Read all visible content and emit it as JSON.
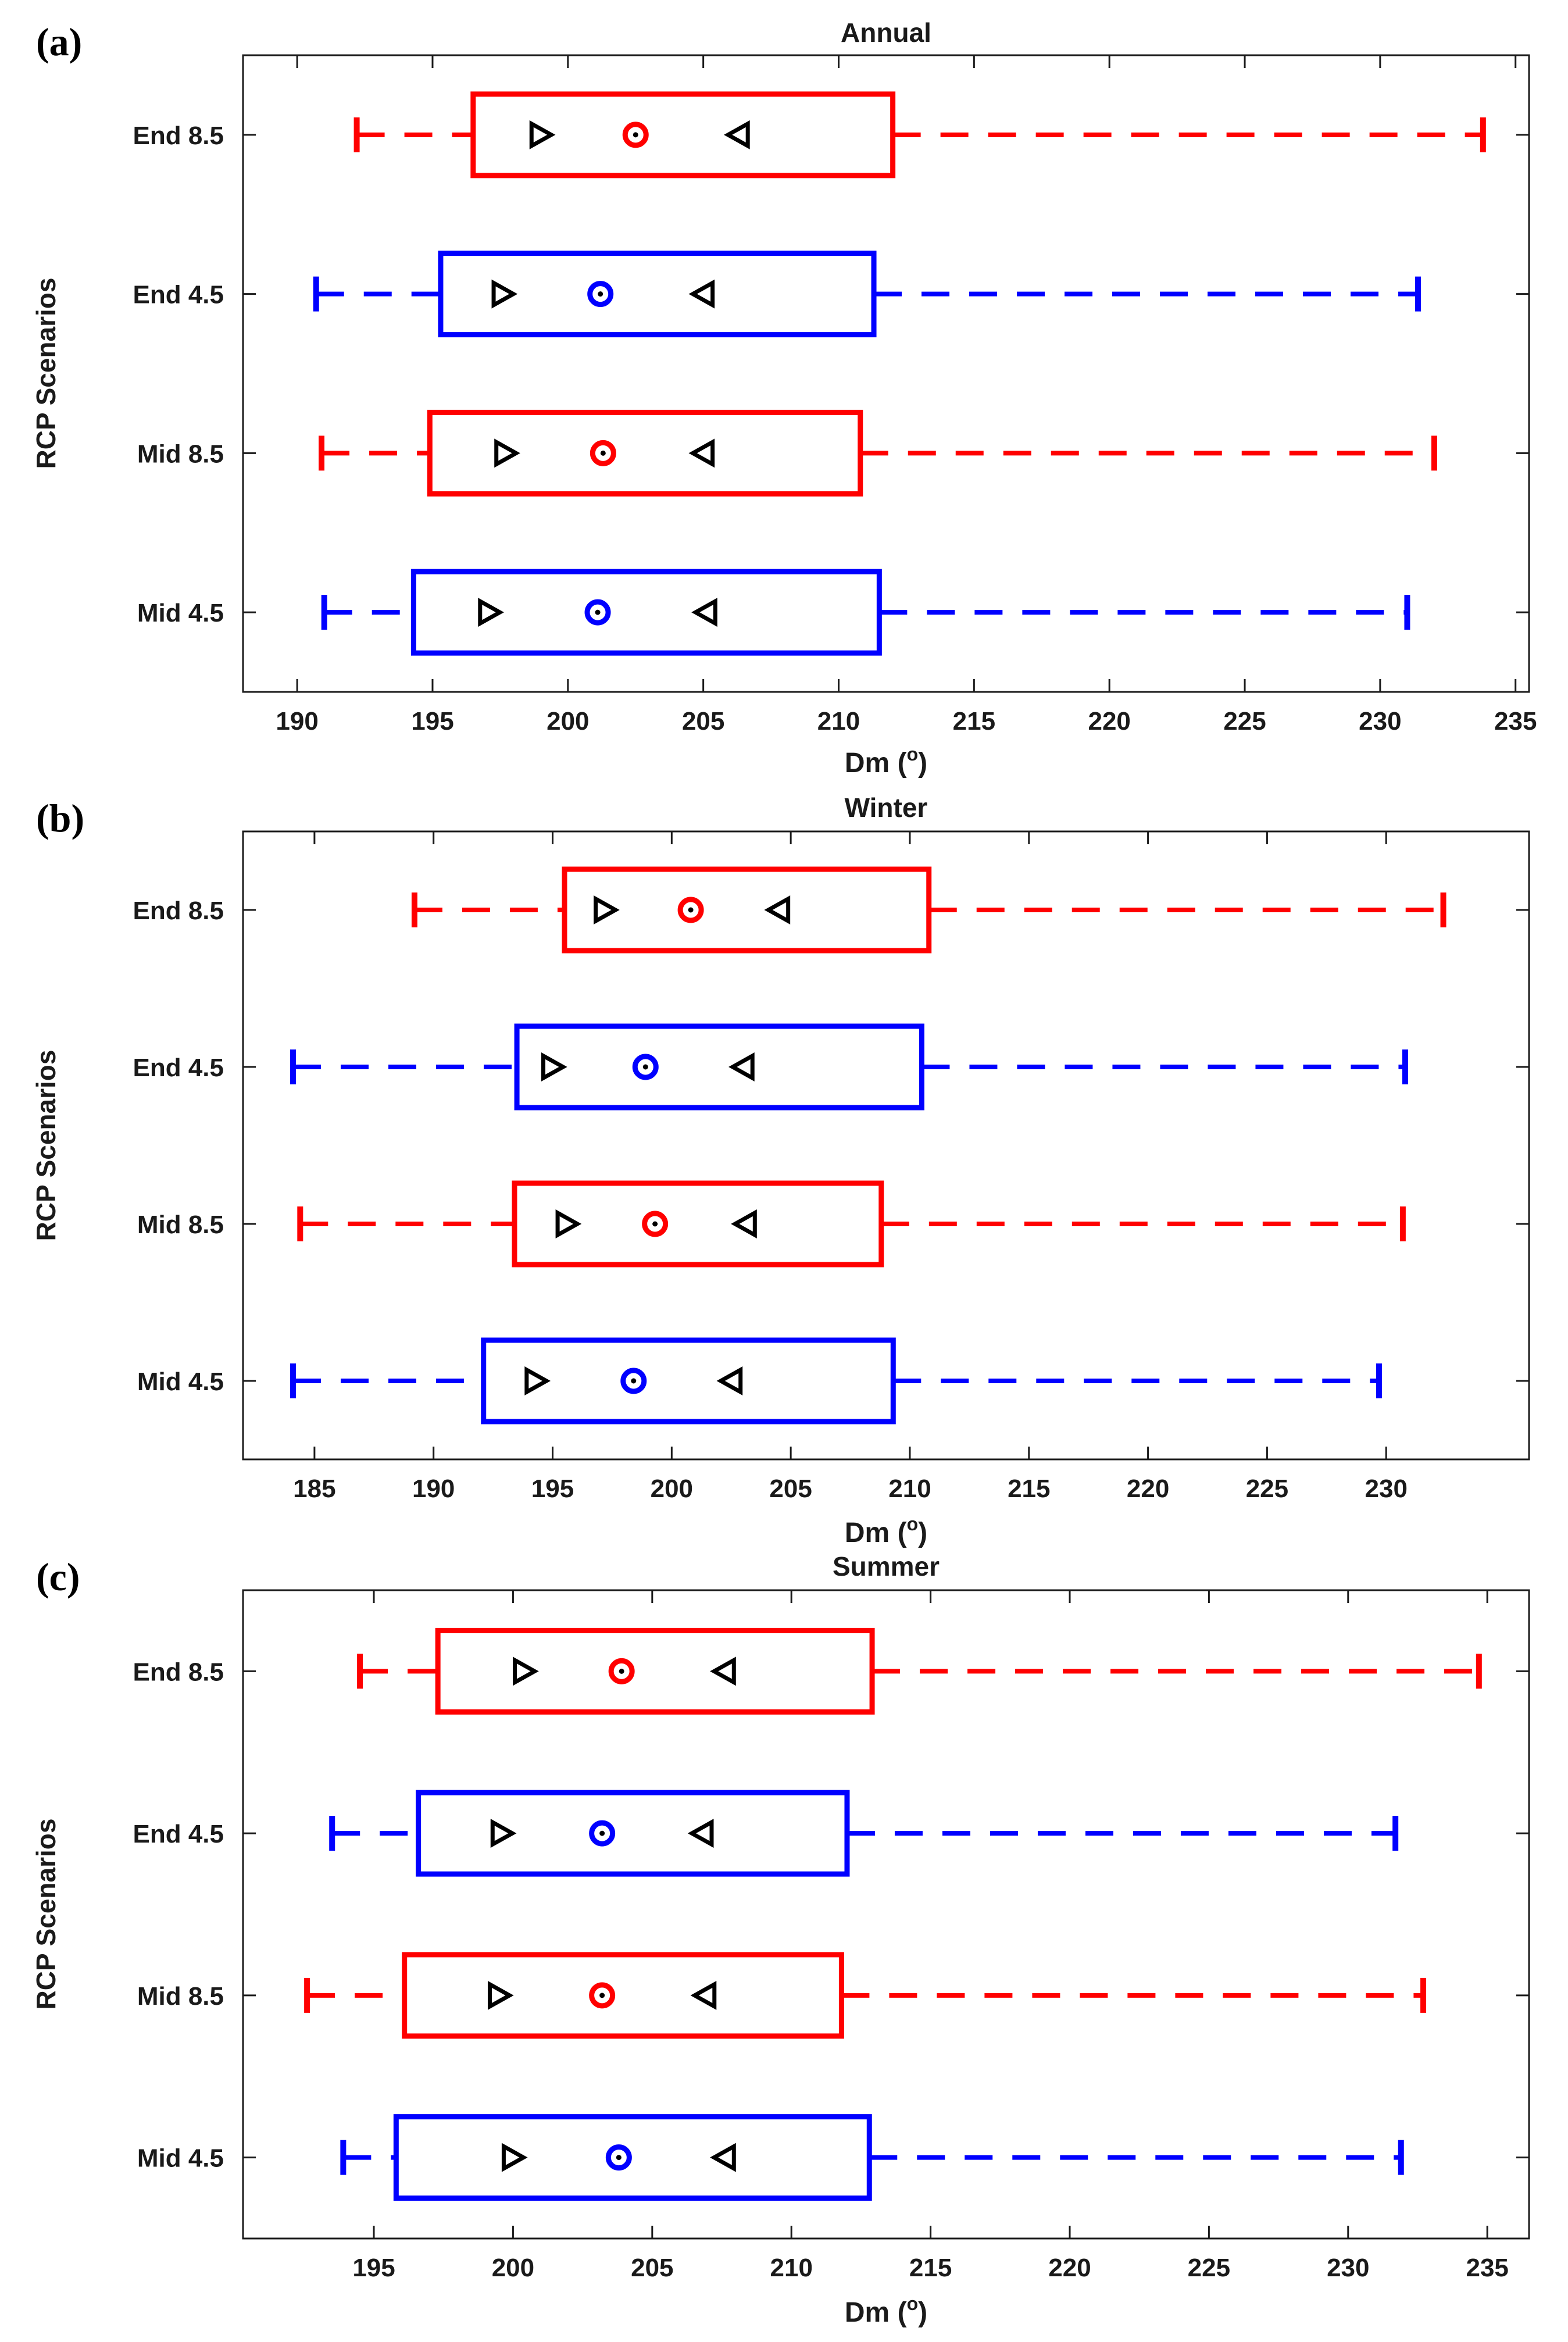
{
  "chart_data": [
    {
      "type": "box",
      "panel_label": "(a)",
      "title": "Annual",
      "xlabel": "Dm (",
      "xlabel_sup": "o",
      "xlabel_close": ")",
      "ylabel": "RCP Scenarios",
      "xlim": [
        188,
        235.5
      ],
      "xticks": [
        190,
        195,
        200,
        205,
        210,
        215,
        220,
        225,
        230,
        235
      ],
      "grid": false,
      "series": [
        {
          "category": "End 8.5",
          "color": "#ff0000",
          "whisker_low": 192.2,
          "q1": 196.5,
          "mean_low": 199.0,
          "median": 202.5,
          "mean_high": 206.3,
          "q3": 212.0,
          "whisker_high": 233.8
        },
        {
          "category": "End 4.5",
          "color": "#0000ff",
          "whisker_low": 190.7,
          "q1": 195.3,
          "mean_low": 197.6,
          "median": 201.2,
          "mean_high": 205.0,
          "q3": 211.3,
          "whisker_high": 231.4
        },
        {
          "category": "Mid 8.5",
          "color": "#ff0000",
          "whisker_low": 190.9,
          "q1": 194.9,
          "mean_low": 197.7,
          "median": 201.3,
          "mean_high": 205.0,
          "q3": 210.8,
          "whisker_high": 232.0
        },
        {
          "category": "Mid 4.5",
          "color": "#0000ff",
          "whisker_low": 191.0,
          "q1": 194.3,
          "mean_low": 197.1,
          "median": 201.1,
          "mean_high": 205.1,
          "q3": 211.5,
          "whisker_high": 231.0
        }
      ]
    },
    {
      "type": "box",
      "panel_label": "(b)",
      "title": "Winter",
      "xlabel": "Dm (",
      "xlabel_sup": "o",
      "xlabel_close": ")",
      "ylabel": "RCP Scenarios",
      "xlim": [
        182,
        236
      ],
      "xticks": [
        185,
        190,
        195,
        200,
        205,
        210,
        215,
        220,
        225,
        230
      ],
      "grid": false,
      "series": [
        {
          "category": "End 8.5",
          "color": "#ff0000",
          "whisker_low": 189.2,
          "q1": 195.5,
          "mean_low": 197.2,
          "median": 200.8,
          "mean_high": 204.5,
          "q3": 210.8,
          "whisker_high": 232.4
        },
        {
          "category": "End 4.5",
          "color": "#0000ff",
          "whisker_low": 184.1,
          "q1": 193.5,
          "mean_low": 195.0,
          "median": 198.9,
          "mean_high": 203.0,
          "q3": 210.5,
          "whisker_high": 230.8
        },
        {
          "category": "Mid 8.5",
          "color": "#ff0000",
          "whisker_low": 184.4,
          "q1": 193.4,
          "mean_low": 195.6,
          "median": 199.3,
          "mean_high": 203.1,
          "q3": 208.8,
          "whisker_high": 230.7
        },
        {
          "category": "Mid 4.5",
          "color": "#0000ff",
          "whisker_low": 184.1,
          "q1": 192.1,
          "mean_low": 194.3,
          "median": 198.4,
          "mean_high": 202.5,
          "q3": 209.3,
          "whisker_high": 229.7
        }
      ]
    },
    {
      "type": "box",
      "panel_label": "(c)",
      "title": "Summer",
      "xlabel": "Dm (",
      "xlabel_sup": "o",
      "xlabel_close": ")",
      "ylabel": "RCP Scenarios",
      "xlim": [
        190.3,
        236.5
      ],
      "xticks": [
        195,
        200,
        205,
        210,
        215,
        220,
        225,
        230,
        235
      ],
      "grid": false,
      "series": [
        {
          "category": "End 8.5",
          "color": "#ff0000",
          "whisker_low": 194.5,
          "q1": 197.3,
          "mean_low": 200.4,
          "median": 203.9,
          "mean_high": 207.6,
          "q3": 212.9,
          "whisker_high": 234.7
        },
        {
          "category": "End 4.5",
          "color": "#0000ff",
          "whisker_low": 193.5,
          "q1": 196.6,
          "mean_low": 199.6,
          "median": 203.2,
          "mean_high": 206.8,
          "q3": 212.0,
          "whisker_high": 231.7
        },
        {
          "category": "Mid 8.5",
          "color": "#ff0000",
          "whisker_low": 192.6,
          "q1": 196.1,
          "mean_low": 199.5,
          "median": 203.2,
          "mean_high": 206.9,
          "q3": 211.8,
          "whisker_high": 232.7
        },
        {
          "category": "Mid 4.5",
          "color": "#0000ff",
          "whisker_low": 193.9,
          "q1": 195.8,
          "mean_low": 200.0,
          "median": 203.8,
          "mean_high": 207.6,
          "q3": 212.8,
          "whisker_high": 231.9
        }
      ]
    }
  ]
}
